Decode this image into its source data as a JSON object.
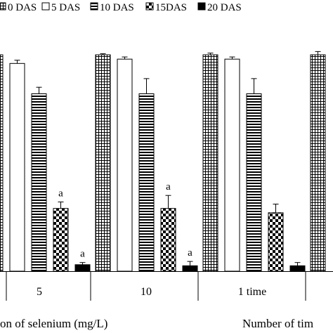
{
  "chart_data": {
    "type": "bar",
    "legend": {
      "placement": "top",
      "entries": [
        {
          "label": "0 DAS",
          "pattern": "grid"
        },
        {
          "label": "5 DAS",
          "pattern": "white"
        },
        {
          "label": "10 DAS",
          "pattern": "hstripe"
        },
        {
          "label": "15DAS",
          "pattern": "checker"
        },
        {
          "label": "20 DAS",
          "pattern": "black"
        }
      ]
    },
    "groups": [
      {
        "label": "",
        "series": [
          {
            "value": 100,
            "error": 1.5
          },
          {
            "value": 96,
            "error": 1.5
          },
          {
            "value": 82,
            "error": 3
          },
          {
            "value": 29,
            "error": 3,
            "letter": "a"
          },
          {
            "value": 3,
            "error": 1,
            "letter": "a"
          }
        ]
      },
      {
        "label": "5",
        "series": [
          {
            "value": 100,
            "error": 1.5
          },
          {
            "value": 96,
            "error": 1.5
          },
          {
            "value": 82,
            "error": 3
          },
          {
            "value": 29,
            "error": 3,
            "letter": "a"
          },
          {
            "value": 3,
            "error": 1,
            "letter": "a"
          }
        ]
      },
      {
        "label": "10",
        "series": [
          {
            "value": 100,
            "error": 0.5
          },
          {
            "value": 98,
            "error": 1
          },
          {
            "value": 82,
            "error": 7
          },
          {
            "value": 29,
            "error": 6,
            "letter": "a"
          },
          {
            "value": 2.5,
            "error": 2,
            "letter": "a"
          }
        ]
      },
      {
        "label": "1 time",
        "series": [
          {
            "value": 100,
            "error": 0.8
          },
          {
            "value": 98,
            "error": 1
          },
          {
            "value": 82,
            "error": 7
          },
          {
            "value": 27,
            "error": 4
          },
          {
            "value": 2.5,
            "error": 1.5
          }
        ]
      },
      {
        "label": "",
        "series": [
          {
            "value": 100,
            "error": 1.5
          }
        ]
      }
    ],
    "ylim": [
      0,
      100
    ],
    "xlabels": [
      {
        "text": "on of selenium (mg/L)",
        "group_span": [
          0,
          2
        ]
      },
      {
        "text": "Number of tim",
        "group_span": [
          3,
          4
        ]
      }
    ],
    "grid": false
  }
}
